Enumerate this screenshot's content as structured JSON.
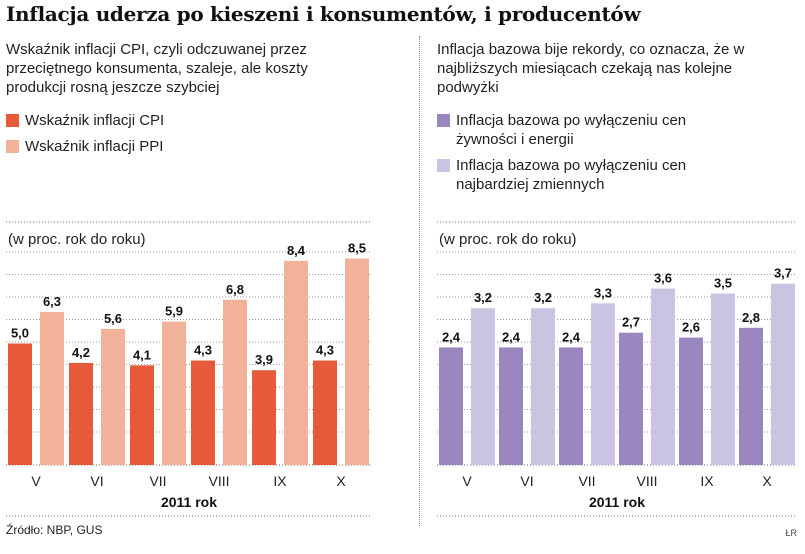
{
  "title": "Inflacja uderza po kieszeni i konsumentów, i producentów",
  "source": "Źródło: NBP, GUS",
  "credit": "ŁR",
  "left_panel": {
    "description": "Wskaźnik inflacji CPI, czyli odczuwanej przez przeciętnego konsumenta, szaleje, ale koszty produkcji rosną jeszcze szybciej",
    "legend": [
      {
        "label": "Wskaźnik inflacji CPI",
        "color": "#e65a3a"
      },
      {
        "label": "Wskaźnik inflacji PPI",
        "color": "#f2b29a"
      }
    ],
    "unit": "(w proc. rok do roku)"
  },
  "right_panel": {
    "description": "Inflacja bazowa bije rekordy, co oznacza, że w najbliższych miesiącach czekają nas kolejne podwyżki",
    "legend": [
      {
        "label": "Inflacja bazowa po wyłączeniu cen żywności i energii",
        "color": "#9b87c0"
      },
      {
        "label": "Inflacja bazowa po wyłączeniu cen najbardziej zmiennych",
        "color": "#cbc3e2"
      }
    ],
    "unit": "(w proc. rok do roku)"
  },
  "chart_data": [
    {
      "type": "bar",
      "categories": [
        "V",
        "VI",
        "VII",
        "VIII",
        "IX",
        "X"
      ],
      "xlabel": "2011 rok",
      "ylabel": "(w proc. rok do roku)",
      "ylim": [
        0,
        9
      ],
      "grid": true,
      "series": [
        {
          "name": "Wskaźnik inflacji CPI",
          "values": [
            5.0,
            4.2,
            4.1,
            4.3,
            3.9,
            4.3
          ],
          "labels": [
            "5,0",
            "4,2",
            "4,1",
            "4,3",
            "3,9",
            "4,3"
          ],
          "color": "#e65a3a"
        },
        {
          "name": "Wskaźnik inflacji PPI",
          "values": [
            6.3,
            5.6,
            5.9,
            6.8,
            8.4,
            8.5
          ],
          "labels": [
            "6,3",
            "5,6",
            "5,9",
            "6,8",
            "8,4",
            "8,5"
          ],
          "color": "#f2b29a"
        }
      ]
    },
    {
      "type": "bar",
      "categories": [
        "V",
        "VI",
        "VII",
        "VIII",
        "IX",
        "X"
      ],
      "xlabel": "2011 rok",
      "ylabel": "(w proc. rok do roku)",
      "ylim": [
        0,
        4
      ],
      "grid": true,
      "series": [
        {
          "name": "Inflacja bazowa po wyłączeniu cen żywności i energii",
          "values": [
            2.4,
            2.4,
            2.4,
            2.7,
            2.6,
            2.8
          ],
          "labels": [
            "2,4",
            "2,4",
            "2,4",
            "2,7",
            "2,6",
            "2,8"
          ],
          "color": "#9b87c0"
        },
        {
          "name": "Inflacja bazowa po wyłączeniu cen najbardziej zmiennych",
          "values": [
            3.2,
            3.2,
            3.3,
            3.6,
            3.5,
            3.7
          ],
          "labels": [
            "3,2",
            "3,2",
            "3,3",
            "3,6",
            "3,5",
            "3,7"
          ],
          "color": "#cbc3e2"
        }
      ]
    }
  ]
}
